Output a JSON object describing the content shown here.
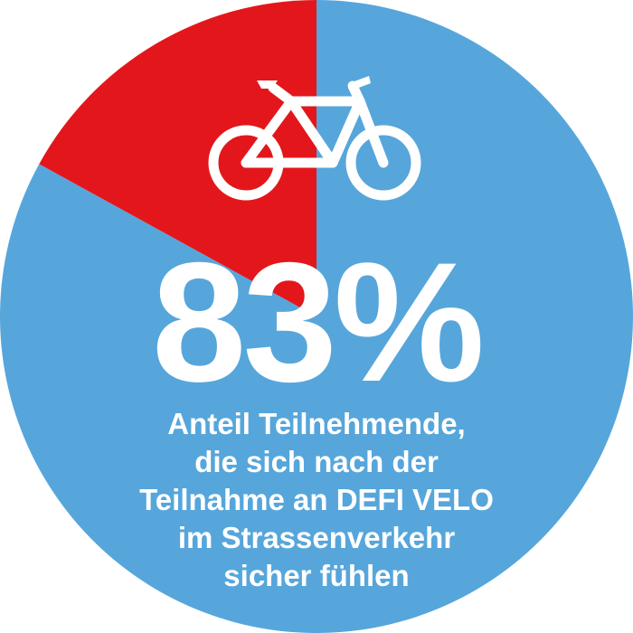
{
  "chart_data": {
    "type": "pie",
    "title": "",
    "slices": [
      {
        "name": "",
        "value": 83,
        "color": "#56a6db"
      },
      {
        "name": "",
        "value": 17,
        "color": "#e3171b"
      }
    ]
  },
  "headline": {
    "value_text": "83%"
  },
  "caption": {
    "lines": [
      "Anteil Teilnehmende,",
      "die sich nach der",
      "Teilnahme an DEFI VELO",
      "im Strassenverkehr",
      "sicher fühlen"
    ]
  },
  "icon": {
    "name": "bicycle-icon",
    "color": "#ffffff"
  }
}
